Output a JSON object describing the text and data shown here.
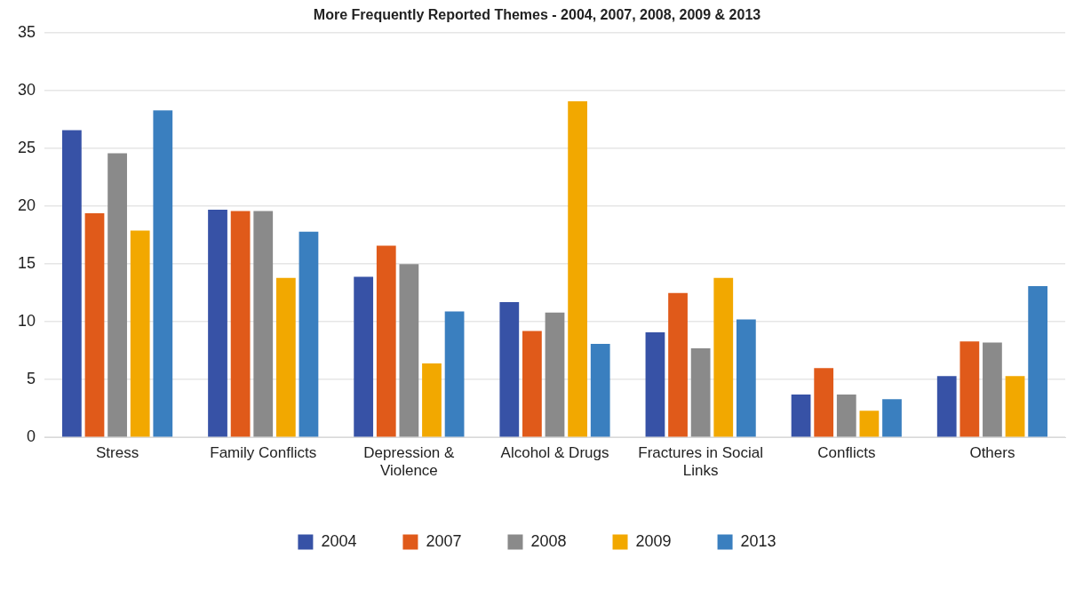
{
  "chart_data": {
    "type": "bar",
    "title": "More Frequently Reported Themes - 2004, 2007, 2008, 2009 & 2013",
    "categories": [
      "Stress",
      "Family Conflicts",
      "Depression & Violence",
      "Alcohol & Drugs",
      "Fractures in Social Links",
      "Conflicts",
      "Others"
    ],
    "series": [
      {
        "name": "2004",
        "color": "#3752a6",
        "values": [
          26.6,
          19.7,
          13.9,
          11.7,
          9.1,
          3.7,
          5.3
        ]
      },
      {
        "name": "2007",
        "color": "#e05a1a",
        "values": [
          19.4,
          19.6,
          16.6,
          9.2,
          12.5,
          6.0,
          8.3
        ]
      },
      {
        "name": "2008",
        "color": "#8a8a8a",
        "values": [
          24.6,
          19.6,
          15.0,
          10.8,
          7.7,
          3.7,
          8.2
        ]
      },
      {
        "name": "2009",
        "color": "#f2a800",
        "values": [
          17.9,
          13.8,
          6.4,
          29.1,
          13.8,
          2.3,
          5.3
        ]
      },
      {
        "name": "2013",
        "color": "#3a7fbf",
        "values": [
          28.3,
          17.8,
          10.9,
          8.1,
          10.2,
          3.3,
          13.1
        ]
      }
    ],
    "ylim": [
      0,
      35
    ],
    "yticks": [
      0,
      5,
      10,
      15,
      20,
      25,
      30,
      35
    ],
    "grid": "y",
    "legend": "bottom"
  }
}
